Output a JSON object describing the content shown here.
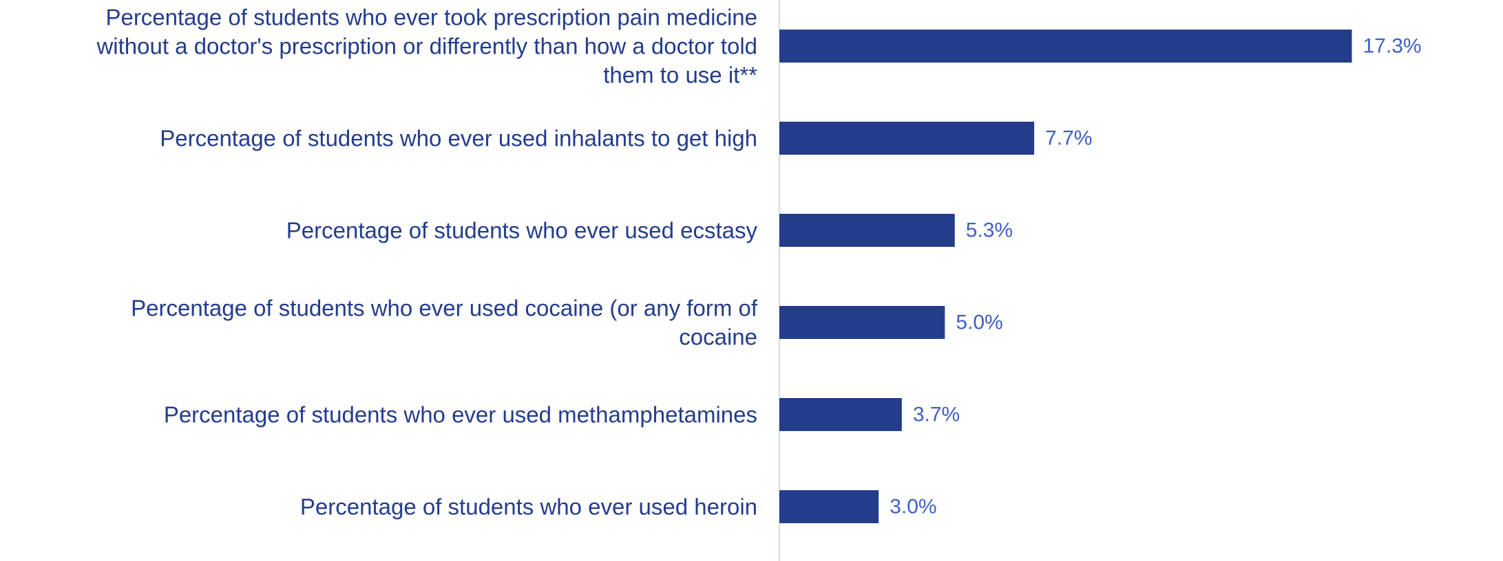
{
  "chart_data": {
    "type": "bar",
    "orientation": "horizontal",
    "categories": [
      "Percentage of students who ever took prescription pain medicine without a doctor's prescription or differently than how a doctor told them to use it**",
      "Percentage of students who ever used inhalants to get high",
      "Percentage of students who ever used ecstasy",
      "Percentage of students who ever used cocaine (or any form of cocaine",
      "Percentage of students who ever used methamphetamines",
      "Percentage of students who ever used heroin"
    ],
    "category_lines": [
      [
        "Percentage of students who ever took prescription pain medicine",
        "without a doctor's prescription or differently than how a doctor told",
        "them to use it**"
      ],
      [
        "Percentage of students who ever used inhalants to get high"
      ],
      [
        "Percentage of students who ever used ecstasy"
      ],
      [
        "Percentage of students who ever used cocaine (or any form of",
        "cocaine"
      ],
      [
        "Percentage of students who ever used methamphetamines"
      ],
      [
        "Percentage of students who ever used heroin"
      ]
    ],
    "values": [
      17.3,
      7.7,
      5.3,
      5.0,
      3.7,
      3.0
    ],
    "value_labels": [
      "17.3%",
      "7.7%",
      "5.3%",
      "5.0%",
      "3.7%",
      "3.0%"
    ],
    "xlim": [
      0,
      19.1
    ],
    "grid": false,
    "legend": "none",
    "colors": {
      "bar": "#233C8C",
      "category_text": "#233C8C",
      "value_text": "#3F5FC7",
      "axis": "#D6DCE5"
    }
  }
}
